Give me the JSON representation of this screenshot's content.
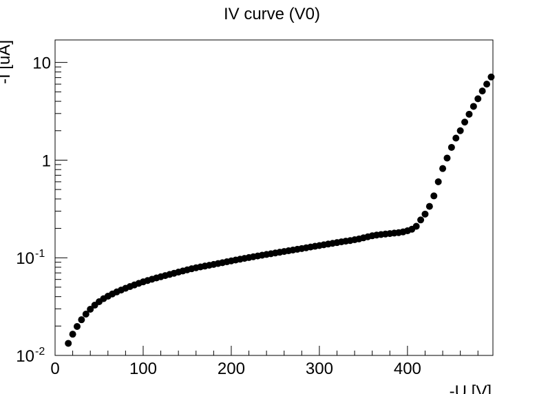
{
  "chart_data": {
    "type": "scatter",
    "title": "IV curve (V0)",
    "xlabel": "-U [V]",
    "ylabel": "-I [uA]",
    "xlim": [
      0,
      497
    ],
    "ylim": [
      0.01,
      17
    ],
    "yscale": "log",
    "grid": false,
    "legend": "none",
    "x_ticks": [
      "0",
      "100",
      "200",
      "300",
      "400"
    ],
    "y_ticks": [
      {
        "value": 0.01,
        "base": "10",
        "exp": "-2"
      },
      {
        "value": 0.1,
        "base": "10",
        "exp": "-1"
      },
      {
        "value": 1,
        "base": "1",
        "exp": ""
      },
      {
        "value": 10,
        "base": "10",
        "exp": ""
      }
    ],
    "marker_color": "#000000",
    "x": [
      15,
      20,
      25,
      30,
      35,
      40,
      45,
      50,
      55,
      60,
      65,
      70,
      75,
      80,
      85,
      90,
      95,
      100,
      105,
      110,
      115,
      120,
      125,
      130,
      135,
      140,
      145,
      150,
      155,
      160,
      165,
      170,
      175,
      180,
      185,
      190,
      195,
      200,
      205,
      210,
      215,
      220,
      225,
      230,
      235,
      240,
      245,
      250,
      255,
      260,
      265,
      270,
      275,
      280,
      285,
      290,
      295,
      300,
      305,
      310,
      315,
      320,
      325,
      330,
      335,
      340,
      345,
      350,
      355,
      360,
      365,
      370,
      375,
      380,
      385,
      390,
      395,
      400,
      405,
      410,
      415,
      420,
      425,
      430,
      435,
      440,
      445,
      450,
      455,
      460,
      465,
      470,
      475,
      480,
      485,
      490,
      495
    ],
    "y": [
      0.0133,
      0.0165,
      0.0198,
      0.0232,
      0.0265,
      0.0297,
      0.0327,
      0.0355,
      0.0381,
      0.0404,
      0.0426,
      0.0447,
      0.0467,
      0.0487,
      0.0507,
      0.0527,
      0.0547,
      0.0567,
      0.0585,
      0.0603,
      0.0621,
      0.0639,
      0.0657,
      0.0675,
      0.0694,
      0.0713,
      0.0732,
      0.0752,
      0.0772,
      0.079,
      0.0806,
      0.0822,
      0.0838,
      0.0855,
      0.0873,
      0.0891,
      0.091,
      0.0929,
      0.0948,
      0.0967,
      0.0986,
      0.1005,
      0.1024,
      0.1043,
      0.1062,
      0.1081,
      0.11,
      0.112,
      0.114,
      0.116,
      0.118,
      0.12,
      0.1221,
      0.1243,
      0.1265,
      0.1288,
      0.1311,
      0.1334,
      0.1358,
      0.1382,
      0.1406,
      0.1431,
      0.1456,
      0.148,
      0.15,
      0.153,
      0.156,
      0.16,
      0.164,
      0.168,
      0.171,
      0.173,
      0.175,
      0.177,
      0.179,
      0.181,
      0.184,
      0.189,
      0.196,
      0.21,
      0.244,
      0.28,
      0.336,
      0.43,
      0.6,
      0.82,
      1.05,
      1.35,
      1.68,
      2.0,
      2.45,
      2.95,
      3.55,
      4.25,
      5.1,
      6.0,
      7.1
    ]
  }
}
